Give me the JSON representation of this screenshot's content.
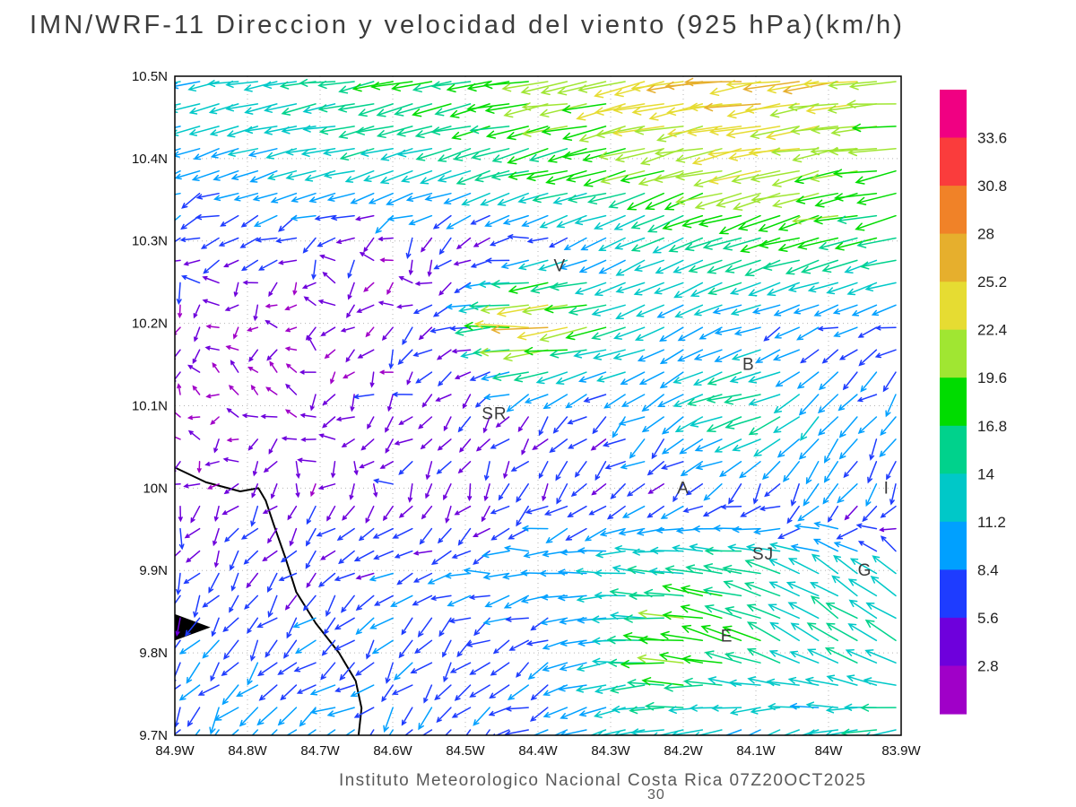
{
  "caption": {
    "text": "Instituto Meteorologico Nacional Costa Rica 07Z20OCT2025",
    "footnote": "30"
  },
  "chart_data": {
    "type": "quiver",
    "title": "IMN/WRF-11 Direccion y velocidad del viento (925 hPa)(km/h)",
    "units": "km/h",
    "level": "925 hPa",
    "valid_time": "07Z20OCT2025",
    "xlabel_ticks": [
      "84.9W",
      "84.8W",
      "84.7W",
      "84.6W",
      "84.5W",
      "84.4W",
      "84.3W",
      "84.2W",
      "84.1W",
      "84W",
      "83.9W"
    ],
    "ylabel_ticks": [
      "10.5N",
      "10.4N",
      "10.3N",
      "10.2N",
      "10.1N",
      "10N",
      "9.9N",
      "9.8N",
      "9.7N"
    ],
    "lon_w": [
      84.9,
      84.8,
      84.7,
      84.6,
      84.5,
      84.4,
      84.3,
      84.2,
      84.1,
      84.0,
      83.9
    ],
    "lat_n": [
      10.5,
      10.4,
      10.3,
      10.2,
      10.1,
      10.0,
      9.9,
      9.8,
      9.7
    ],
    "grid_on": true,
    "vectors_uv_kmh": [
      [
        [
          -11,
          -2
        ],
        [
          -13,
          -2
        ],
        [
          -14,
          -2
        ],
        [
          -16,
          -3
        ],
        [
          -17,
          -3
        ],
        [
          -19,
          -3
        ],
        [
          -21,
          -4
        ],
        [
          -24,
          -4
        ],
        [
          -25,
          -3
        ],
        [
          -24,
          -3
        ],
        [
          -22,
          -2
        ]
      ],
      [
        [
          -9,
          -4
        ],
        [
          -11,
          -3
        ],
        [
          -12,
          -3
        ],
        [
          -13,
          -4
        ],
        [
          -14,
          -4
        ],
        [
          -16,
          -4
        ],
        [
          -18,
          -4
        ],
        [
          -20,
          -5
        ],
        [
          -22,
          -5
        ],
        [
          -21,
          -4
        ],
        [
          -19,
          -3
        ]
      ],
      [
        [
          -6,
          -3
        ],
        [
          -5,
          -3
        ],
        [
          -4,
          -2
        ],
        [
          -3,
          -3
        ],
        [
          -4,
          -3
        ],
        [
          -6,
          -2
        ],
        [
          -9,
          -4
        ],
        [
          -12,
          -6
        ],
        [
          -16,
          -6
        ],
        [
          -17,
          -5
        ],
        [
          -16,
          -4
        ]
      ],
      [
        [
          -3,
          -1
        ],
        [
          -2,
          -2
        ],
        [
          -3,
          1
        ],
        [
          -4,
          -2
        ],
        [
          -6,
          -2
        ],
        [
          -30,
          -1
        ],
        [
          -16,
          -4
        ],
        [
          -9,
          -4
        ],
        [
          -9,
          -3
        ],
        [
          -7,
          -3
        ],
        [
          -6,
          -3
        ]
      ],
      [
        [
          -2,
          1
        ],
        [
          -3,
          1
        ],
        [
          -3,
          -2
        ],
        [
          -4,
          -3
        ],
        [
          -3,
          -4
        ],
        [
          -5,
          -4
        ],
        [
          -6,
          -4
        ],
        [
          -9,
          -6
        ],
        [
          -17,
          -4
        ],
        [
          -8,
          -9
        ],
        [
          -5,
          -5
        ]
      ],
      [
        [
          -2,
          -3
        ],
        [
          -3,
          -3
        ],
        [
          -3,
          -4
        ],
        [
          -3,
          -4
        ],
        [
          -2,
          -5
        ],
        [
          -4,
          -5
        ],
        [
          -5,
          -4
        ],
        [
          -5,
          -4
        ],
        [
          -4,
          -6
        ],
        [
          -4,
          -8
        ],
        [
          -3,
          -7
        ]
      ],
      [
        [
          -3,
          -5
        ],
        [
          -4,
          -5
        ],
        [
          -4,
          -4
        ],
        [
          -6,
          -4
        ],
        [
          -8,
          -2
        ],
        [
          -10,
          -1
        ],
        [
          -12,
          0
        ],
        [
          -14,
          2
        ],
        [
          -17,
          4
        ],
        [
          -11,
          6
        ],
        [
          -8,
          7
        ]
      ],
      [
        [
          -4,
          -6
        ],
        [
          -5,
          -6
        ],
        [
          -6,
          -5
        ],
        [
          -5,
          -6
        ],
        [
          -5,
          -5
        ],
        [
          -7,
          -3
        ],
        [
          -11,
          -1
        ],
        [
          -21,
          2
        ],
        [
          -15,
          6
        ],
        [
          -11,
          8
        ],
        [
          -13,
          7
        ]
      ],
      [
        [
          -5,
          -6
        ],
        [
          -7,
          -7
        ],
        [
          -8,
          -5
        ],
        [
          -6,
          -6
        ],
        [
          -5,
          -5
        ],
        [
          -8,
          -4
        ],
        [
          -11,
          -3
        ],
        [
          -13,
          -2
        ],
        [
          -10,
          -4
        ],
        [
          -12,
          -3
        ],
        [
          -14,
          -3
        ]
      ]
    ],
    "colorbar": {
      "labels_top_to_bottom": [
        "33.6",
        "30.8",
        "28",
        "25.2",
        "22.4",
        "19.6",
        "16.8",
        "14",
        "11.2",
        "8.4",
        "5.6",
        "2.8"
      ],
      "speed_levels_kmh": [
        2.8,
        5.6,
        8.4,
        11.2,
        14,
        16.8,
        19.6,
        22.4,
        25.2,
        28,
        30.8,
        33.6
      ],
      "speed_colors_low_to_high": [
        "#a000c8",
        "#6e00dc",
        "#1e3cff",
        "#00a0ff",
        "#00c8c8",
        "#00d28c",
        "#00dc00",
        "#a0e632",
        "#e6dc32",
        "#e6af2d",
        "#f08228",
        "#fa3c3c",
        "#f00082"
      ]
    },
    "stations": [
      {
        "label": "V",
        "lon_w": 84.37,
        "lat": 10.27
      },
      {
        "label": "B",
        "lon_w": 84.11,
        "lat": 10.15
      },
      {
        "label": "SR",
        "lon_w": 84.46,
        "lat": 10.09
      },
      {
        "label": "A",
        "lon_w": 84.2,
        "lat": 10.0
      },
      {
        "label": "SJ",
        "lon_w": 84.09,
        "lat": 9.92
      },
      {
        "label": "G",
        "lon_w": 83.95,
        "lat": 9.9
      },
      {
        "label": "E",
        "lon_w": 84.14,
        "lat": 9.82
      },
      {
        "label": "I",
        "lon_w": 83.92,
        "lat": 10.0
      }
    ],
    "coastline": {
      "main_lonlat": [
        [
          84.9,
          10.025
        ],
        [
          84.857,
          10.007
        ],
        [
          84.81,
          9.996
        ],
        [
          84.785,
          10.0
        ],
        [
          84.775,
          9.985
        ],
        [
          84.764,
          9.956
        ],
        [
          84.748,
          9.916
        ],
        [
          84.733,
          9.874
        ],
        [
          84.706,
          9.836
        ],
        [
          84.674,
          9.8
        ],
        [
          84.651,
          9.766
        ],
        [
          84.643,
          9.733
        ],
        [
          84.647,
          9.7
        ]
      ],
      "spit_lonlat": [
        [
          84.9,
          9.847
        ],
        [
          84.851,
          9.831
        ],
        [
          84.9,
          9.815
        ]
      ]
    }
  }
}
